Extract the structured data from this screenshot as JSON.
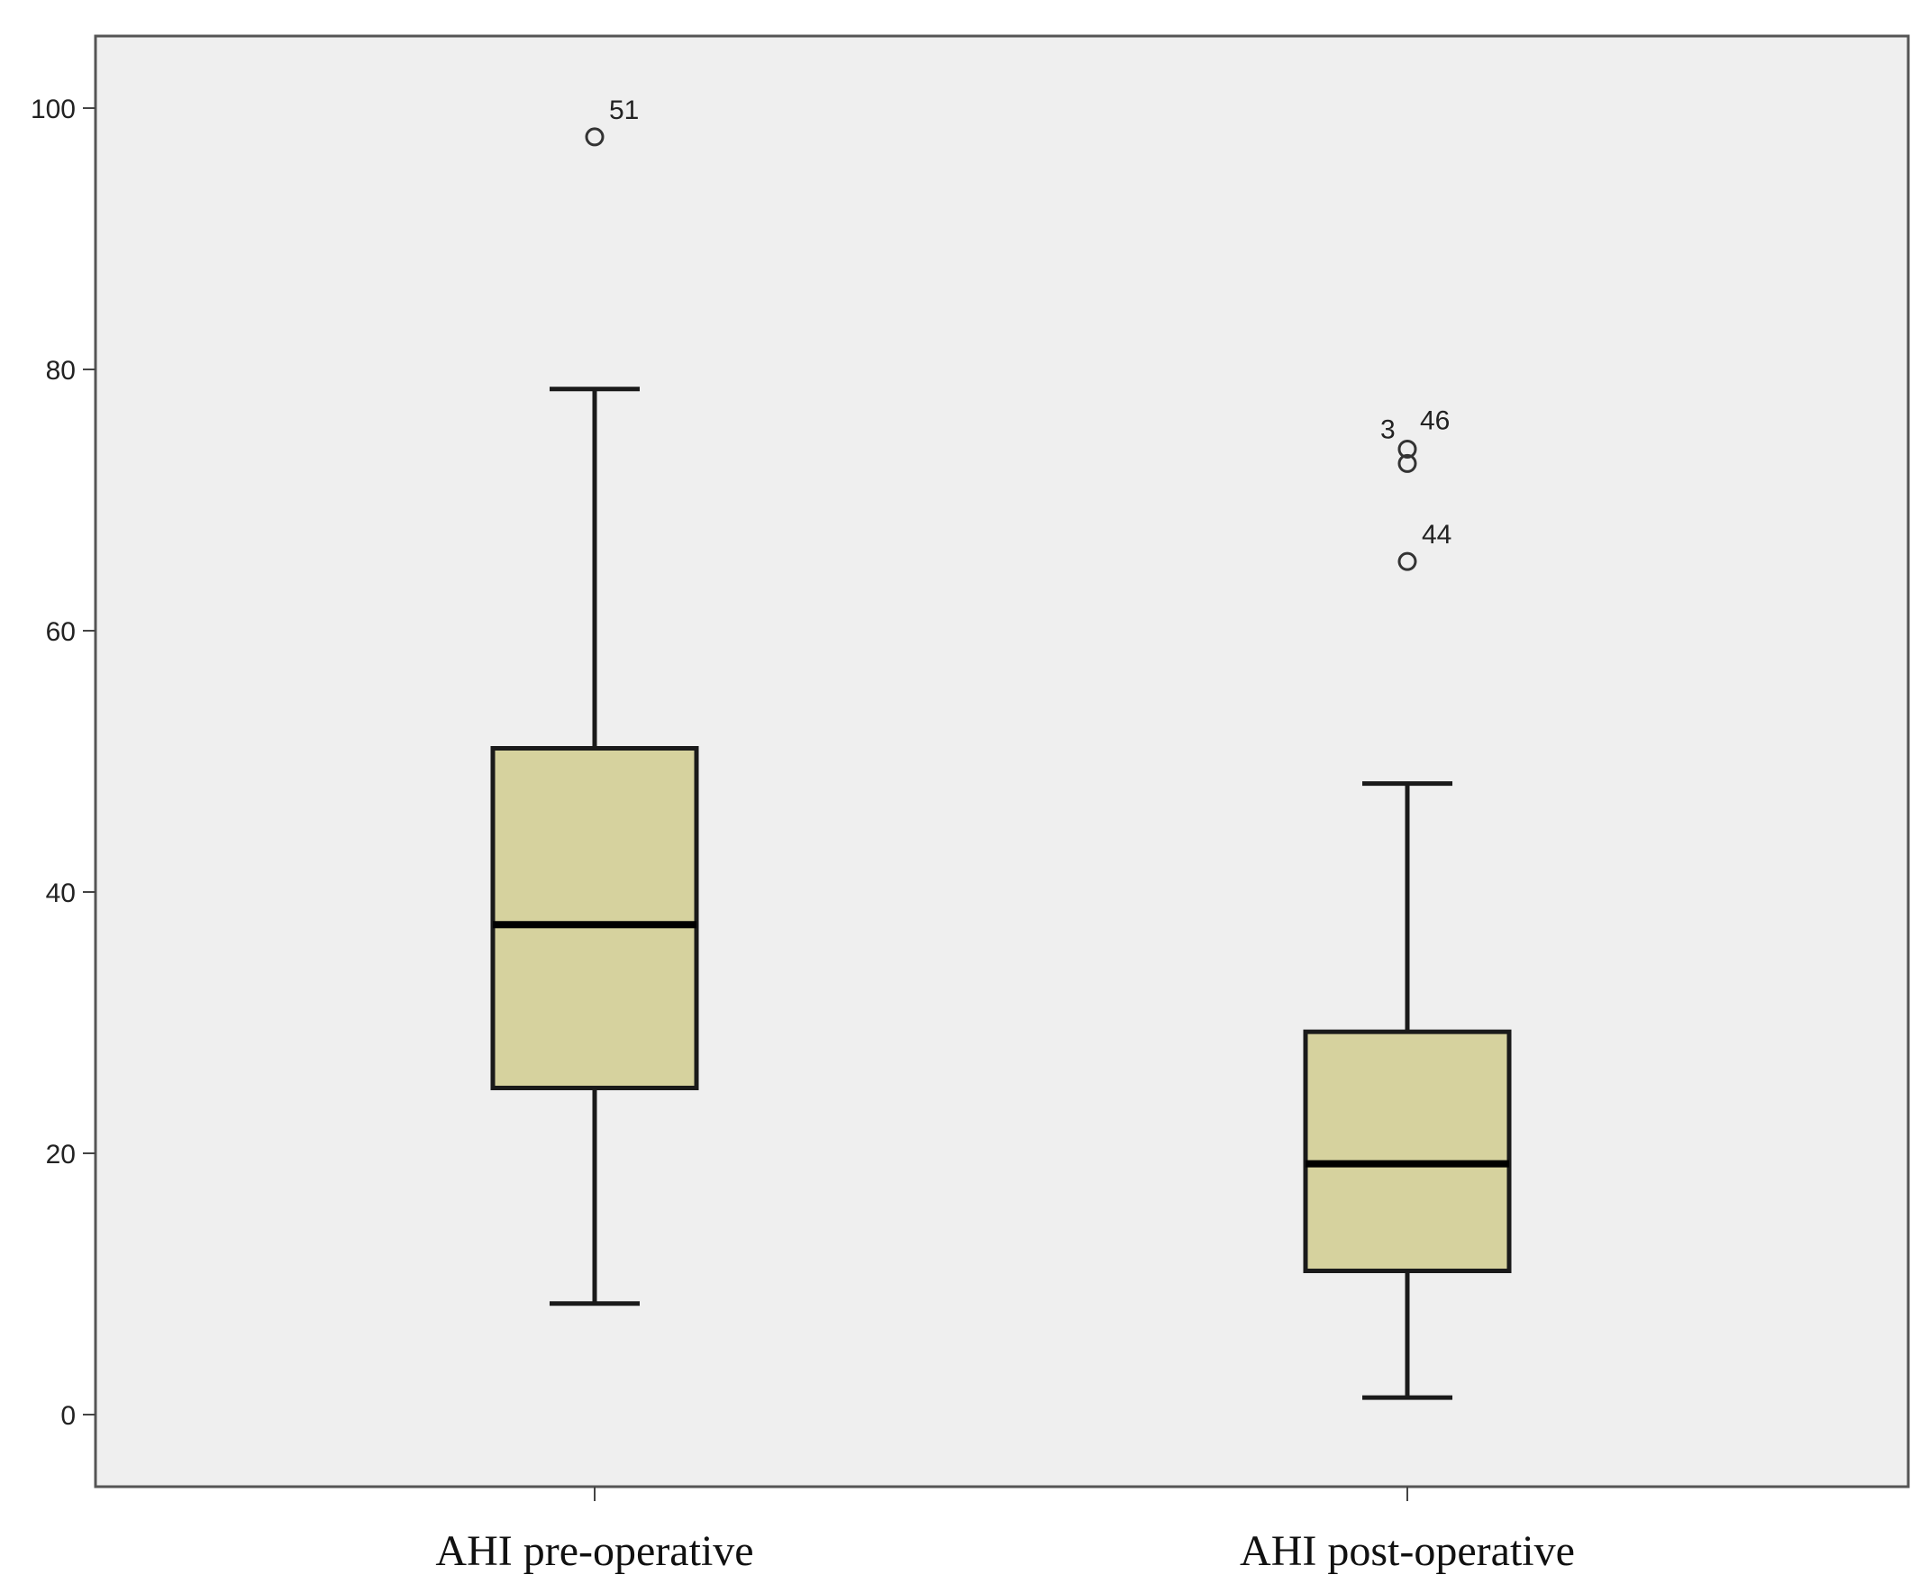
{
  "chart_data": {
    "type": "boxplot",
    "title": "",
    "xlabel": "",
    "ylabel": "",
    "ylim": [
      -7,
      110
    ],
    "yticks": [
      0,
      20,
      40,
      60,
      80,
      100
    ],
    "grid": false,
    "legend": "none",
    "colors": {
      "plot_background": "#efefef",
      "box_fill": "#d6d29e",
      "stroke": "#1a1a1a",
      "frame": "#555555"
    },
    "categories": [
      "AHI pre-operative",
      "AHI post-operative"
    ],
    "boxes": [
      {
        "label": "AHI pre-operative",
        "whisker_low": 8.5,
        "q1": 25,
        "median": 37.5,
        "q3": 51,
        "whisker_high": 78.5,
        "outliers": [
          {
            "value": 97.8,
            "label": "51"
          }
        ]
      },
      {
        "label": "AHI post-operative",
        "whisker_low": 1.3,
        "q1": 11,
        "median": 19.2,
        "q3": 29.3,
        "whisker_high": 48.3,
        "outliers": [
          {
            "value": 73.9,
            "label": "3"
          },
          {
            "value": 72.8,
            "label": "46"
          },
          {
            "value": 65.3,
            "label": "44"
          }
        ]
      }
    ]
  }
}
